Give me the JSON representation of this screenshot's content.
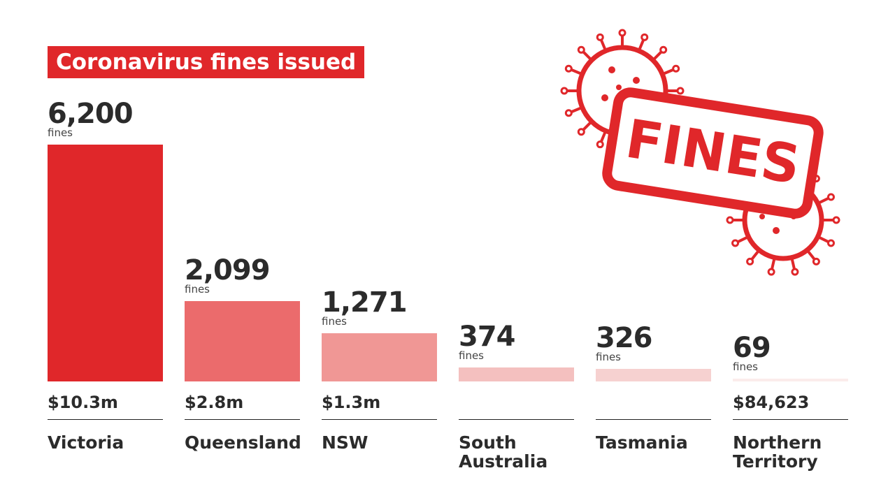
{
  "chart_data": {
    "type": "bar",
    "title": "Coronavirus fines issued",
    "categories": [
      "Victoria",
      "Queensland",
      "NSW",
      "South Australia",
      "Tasmania",
      "Northern Territory"
    ],
    "values": [
      6200,
      2099,
      1271,
      374,
      326,
      69
    ],
    "value_labels": [
      "6,200",
      "2,099",
      "1,271",
      "374",
      "326",
      "69"
    ],
    "unit_label": "fines",
    "fine_totals": [
      "$10.3m",
      "$2.8m",
      "$1.3m",
      null,
      null,
      "$84,623"
    ],
    "colors": [
      "#e0272a",
      "#eb6b6c",
      "#f09795",
      "#f4c0bf",
      "#f6d1d0",
      "#fbeceb"
    ],
    "ylim": [
      0,
      6200
    ],
    "stamp_text": "FINES"
  }
}
